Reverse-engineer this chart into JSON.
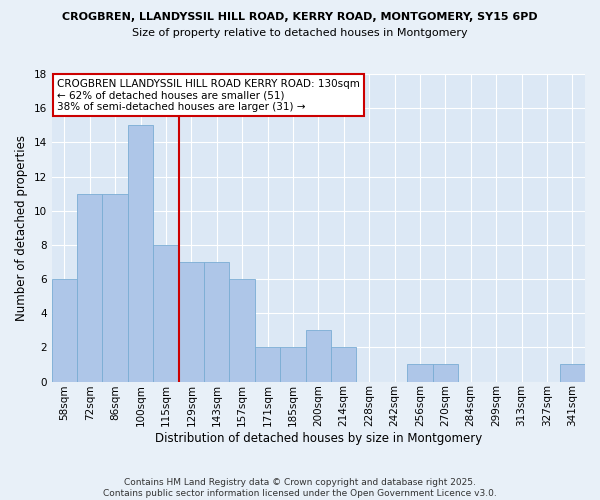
{
  "title1": "CROGBREN, LLANDYSSIL HILL ROAD, KERRY ROAD, MONTGOMERY, SY15 6PD",
  "title2": "Size of property relative to detached houses in Montgomery",
  "xlabel": "Distribution of detached houses by size in Montgomery",
  "ylabel": "Number of detached properties",
  "bin_labels": [
    "58sqm",
    "72sqm",
    "86sqm",
    "100sqm",
    "115sqm",
    "129sqm",
    "143sqm",
    "157sqm",
    "171sqm",
    "185sqm",
    "200sqm",
    "214sqm",
    "228sqm",
    "242sqm",
    "256sqm",
    "270sqm",
    "284sqm",
    "299sqm",
    "313sqm",
    "327sqm",
    "341sqm"
  ],
  "bar_values": [
    6,
    11,
    11,
    15,
    8,
    7,
    7,
    6,
    2,
    2,
    3,
    2,
    0,
    0,
    1,
    1,
    0,
    0,
    0,
    0,
    1
  ],
  "bar_color": "#aec6e8",
  "bar_edge_color": "#7aadd4",
  "vline_x": 4.5,
  "vline_color": "#cc0000",
  "annotation_title": "CROGBREN LLANDYSSIL HILL ROAD KERRY ROAD: 130sqm",
  "annotation_line1": "← 62% of detached houses are smaller (51)",
  "annotation_line2": "38% of semi-detached houses are larger (31) →",
  "annotation_box_color": "#ffffff",
  "annotation_box_edge": "#cc0000",
  "ylim": [
    0,
    18
  ],
  "yticks": [
    0,
    2,
    4,
    6,
    8,
    10,
    12,
    14,
    16,
    18
  ],
  "footer": "Contains HM Land Registry data © Crown copyright and database right 2025.\nContains public sector information licensed under the Open Government Licence v3.0.",
  "bg_color": "#e8f0f8",
  "plot_bg_color": "#dce8f5",
  "title1_fontsize": 8.0,
  "title2_fontsize": 8.0,
  "xlabel_fontsize": 8.5,
  "ylabel_fontsize": 8.5,
  "tick_fontsize": 7.5,
  "footer_fontsize": 6.5,
  "annot_fontsize": 7.5
}
